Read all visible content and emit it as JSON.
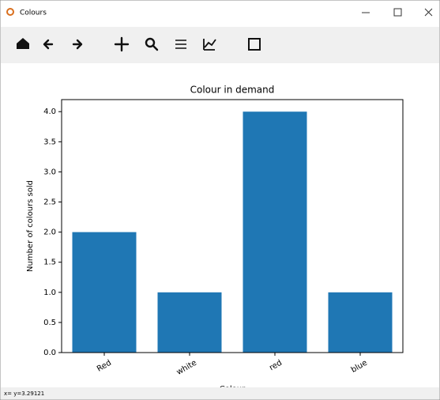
{
  "window": {
    "title": "Colours",
    "status": "x= y=3.29121"
  },
  "chart_data": {
    "type": "bar",
    "title": "Colour in demand",
    "x_label": "Colour",
    "y_label": "Number of colours sold",
    "categories": [
      "Red",
      "white",
      "red",
      "blue"
    ],
    "values": [
      2,
      1,
      4,
      1
    ],
    "color": "#1f77b4",
    "ylim": [
      0,
      4.2
    ],
    "yticks": [
      {
        "value": 0,
        "label": "0.0"
      },
      {
        "value": 0.5,
        "label": "0.5"
      },
      {
        "value": 1,
        "label": "1.0"
      },
      {
        "value": 1.5,
        "label": "1.5"
      },
      {
        "value": 2,
        "label": "2.0"
      },
      {
        "value": 2.5,
        "label": "2.5"
      },
      {
        "value": 3,
        "label": "3.0"
      },
      {
        "value": 3.5,
        "label": "3.5"
      },
      {
        "value": 4,
        "label": "4.0"
      }
    ],
    "grid": false
  }
}
